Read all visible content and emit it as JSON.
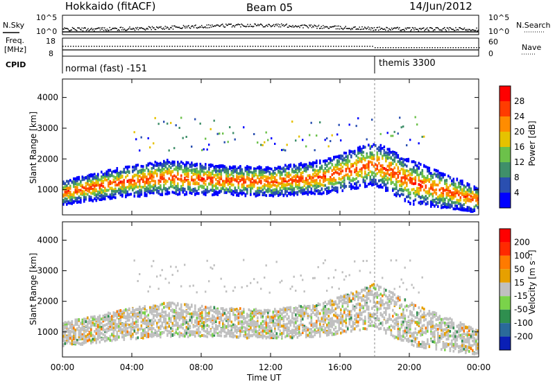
{
  "header": {
    "station": "Hokkaido (fitACF)",
    "beam": "Beam 05",
    "date": "14/Jun/2012"
  },
  "panels": {
    "nsky_label": "N.Sky",
    "nsearch_label": "N.Search",
    "freq_label_1": "Freq.",
    "freq_label_2": "[MHz]",
    "nave_label": "Nave",
    "cpid_label": "CPID",
    "cpid_1": "normal (fast) -151",
    "cpid_2": "themis 3300",
    "nsky_ticks": [
      "10^5",
      "10^0"
    ],
    "nsearch_ticks": [
      "10^5",
      "10^0"
    ],
    "freq_ticks": [
      "18",
      "8"
    ],
    "nave_ticks": [
      "60",
      "0"
    ]
  },
  "chart_data": [
    {
      "type": "heatmap",
      "name": "power",
      "ylabel": "Slant Range [km]",
      "xlabel": "Time UT",
      "x_ticks": [
        "00:00",
        "04:00",
        "08:00",
        "12:00",
        "16:00",
        "20:00",
        "00:00"
      ],
      "y_ticks": [
        1000,
        2000,
        3000,
        4000
      ],
      "ylim": [
        180,
        4600
      ],
      "xlim_hours": [
        0,
        24
      ],
      "colorbar_label": "Power [dB]",
      "colorbar_ticks": [
        "28",
        "24",
        "20",
        "16",
        "12",
        "8",
        "4"
      ],
      "colors": [
        "#0000ff",
        "#2a4fb0",
        "#3f8f6a",
        "#6cc14a",
        "#e6c200",
        "#ff8c00",
        "#ff3c00",
        "#ff0000"
      ],
      "band_hours": [
        0,
        3,
        6,
        9,
        12,
        15,
        18,
        20,
        22,
        24
      ],
      "band_center_km": [
        950,
        1250,
        1450,
        1350,
        1300,
        1450,
        1900,
        1300,
        1000,
        700
      ],
      "band_width_km": [
        500,
        600,
        700,
        600,
        600,
        700,
        900,
        900,
        700,
        500
      ]
    },
    {
      "type": "heatmap",
      "name": "velocity",
      "ylabel": "Slant Range [km]",
      "xlabel": "Time UT",
      "x_ticks": [
        "00:00",
        "04:00",
        "08:00",
        "12:00",
        "16:00",
        "20:00",
        "00:00"
      ],
      "y_ticks": [
        1000,
        2000,
        3000,
        4000
      ],
      "ylim": [
        180,
        4600
      ],
      "colorbar_label": "Velocity [m s⁻¹]",
      "colorbar_ticks": [
        "200",
        "100",
        "50",
        "15",
        "-15",
        "-50",
        "-100",
        "-200"
      ],
      "colors": [
        "#0a1fb5",
        "#2a6a9a",
        "#2f8f4f",
        "#7ad34a",
        "#c0c0c0",
        "#e6a000",
        "#ff7a00",
        "#ff2a00",
        "#ff0000"
      ]
    }
  ]
}
